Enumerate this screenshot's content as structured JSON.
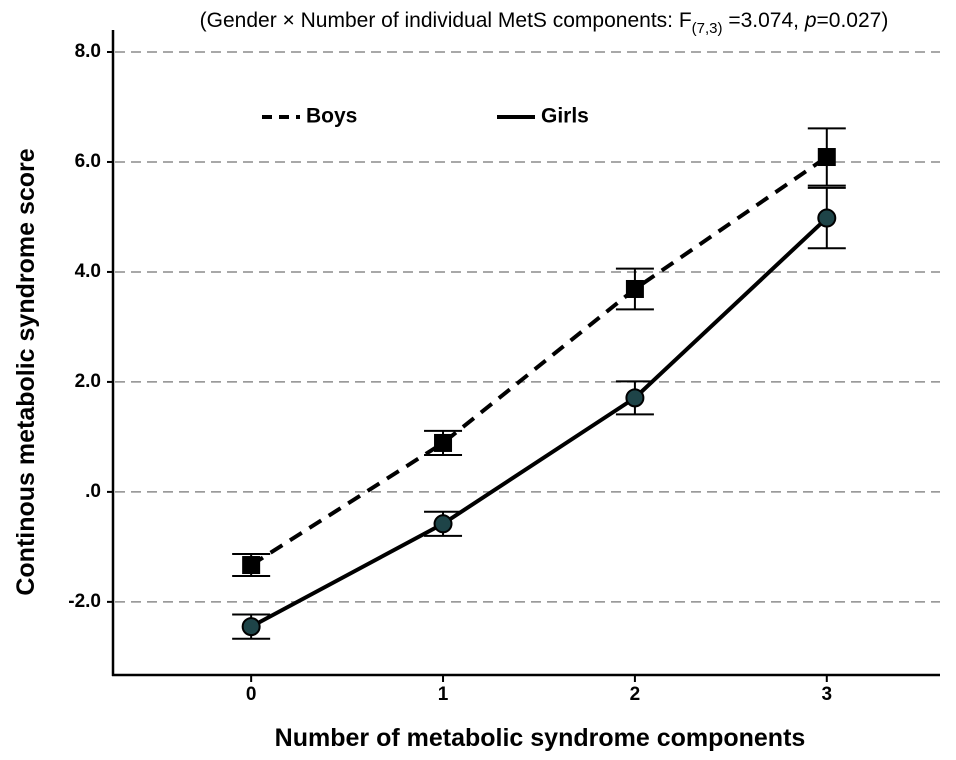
{
  "chart_data": {
    "type": "line",
    "annotation": {
      "prefix": "(Gender × Number of individual MetS components: F",
      "subscript": "(7,3)",
      "middle": " =3.074, ",
      "italic": "p",
      "suffix": "=0.027)"
    },
    "x_label": "Number of metabolic syndrome components",
    "y_label": "Continous metabolic syndrome score",
    "x": [
      0,
      1,
      2,
      3
    ],
    "xlim": [
      -0.72,
      3.59
    ],
    "xticks": [
      0,
      1,
      2,
      3
    ],
    "ylim": [
      -3.33,
      8.4
    ],
    "yticks": [
      {
        "value": -2,
        "label": "-2.0"
      },
      {
        "value": 0,
        "label": ".0"
      },
      {
        "value": 2,
        "label": "2.0"
      },
      {
        "value": 4,
        "label": "4.0"
      },
      {
        "value": 6,
        "label": "6.0"
      },
      {
        "value": 8,
        "label": "8.0"
      }
    ],
    "grid": true,
    "legend": "top-left",
    "series": [
      {
        "name": "Boys",
        "color": "#000000",
        "dash": true,
        "marker": "square",
        "values": [
          -1.33,
          0.89,
          3.69,
          6.09
        ],
        "errors": [
          0.2,
          0.22,
          0.37,
          0.52
        ]
      },
      {
        "name": "Girls",
        "color": "#000000",
        "dash": false,
        "marker": "circle",
        "marker_fill": "#1e4448",
        "values": [
          -2.45,
          -0.58,
          1.71,
          4.98
        ],
        "errors": [
          0.22,
          0.22,
          0.3,
          0.55
        ]
      }
    ]
  }
}
